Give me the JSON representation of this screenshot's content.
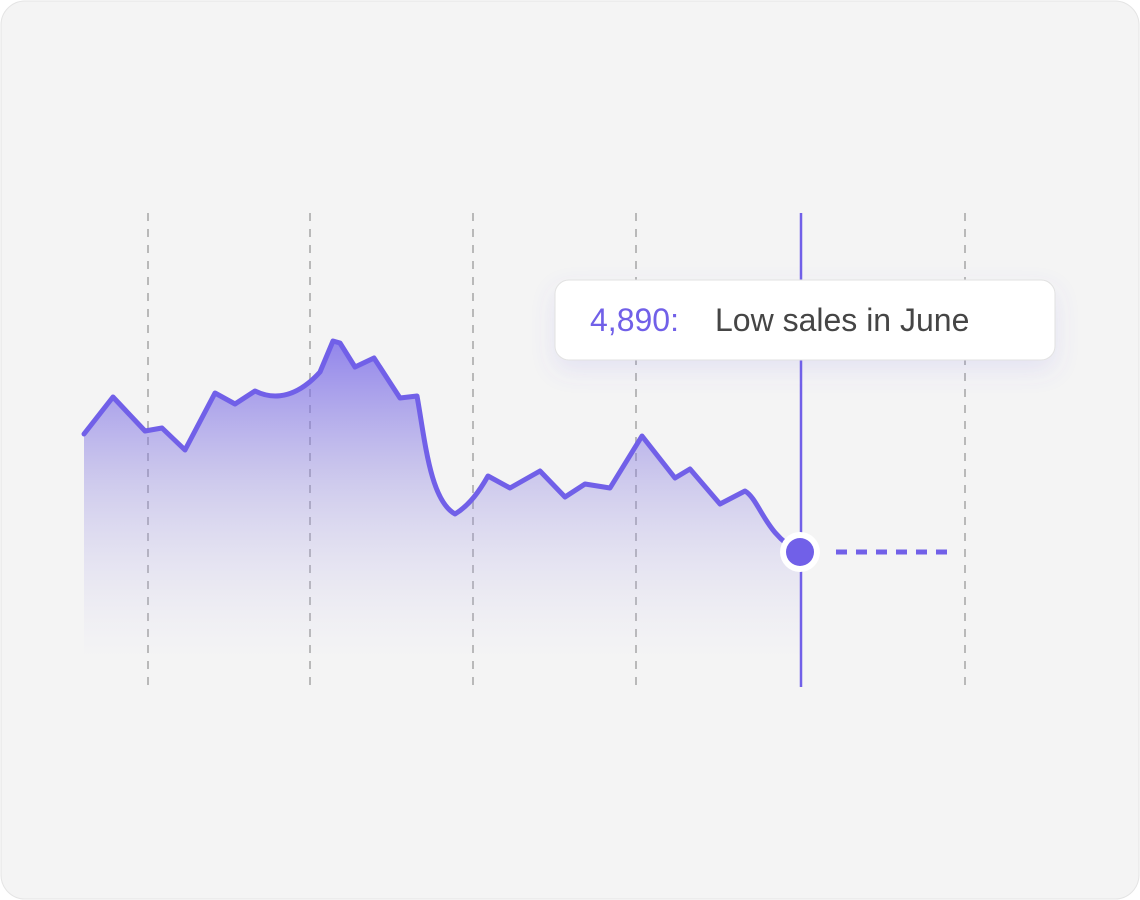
{
  "tooltip": {
    "value": "4,890:",
    "label": "Low sales in June"
  }
}
